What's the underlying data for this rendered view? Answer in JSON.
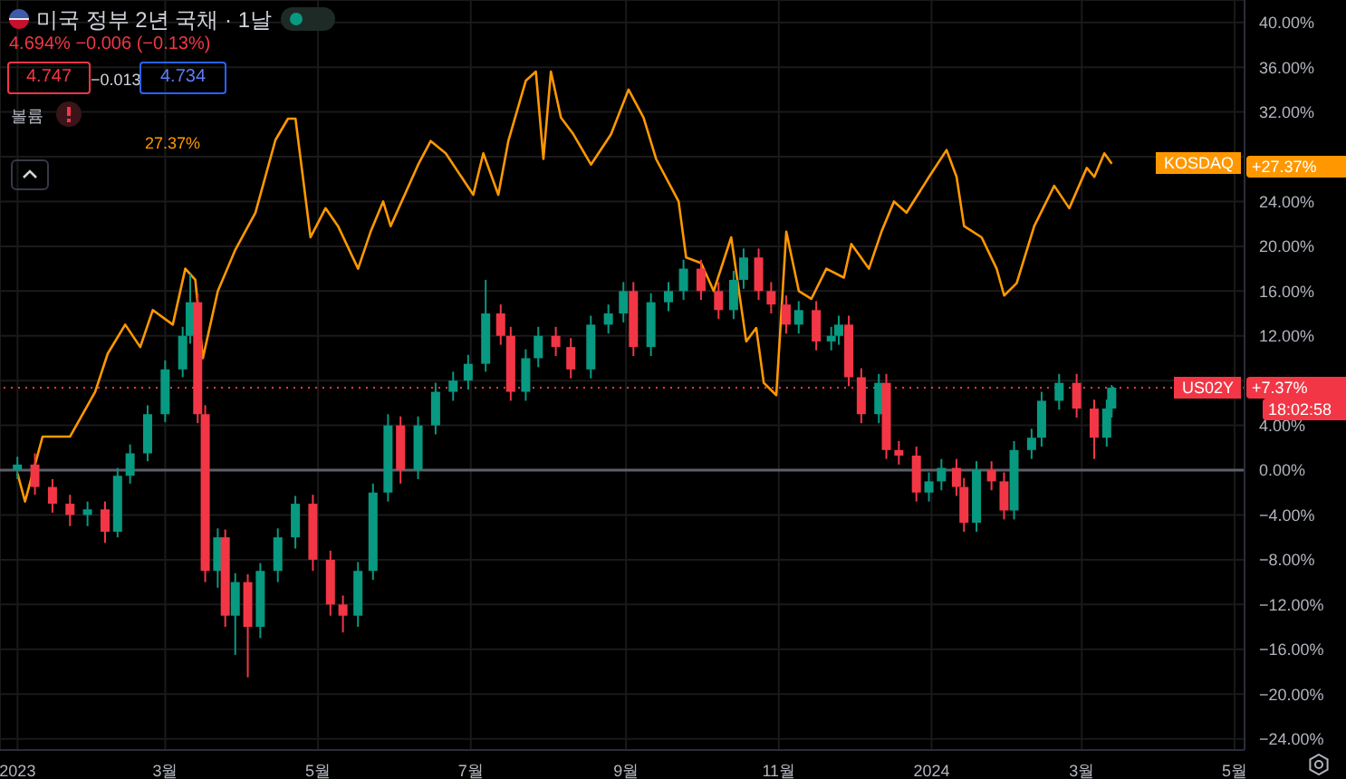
{
  "chart_data": {
    "type": "candlestick",
    "title": "미국 정부 2년 국채 · 1날",
    "subtitle": "4.694% −0.006 (−0.13%)",
    "annotations": [
      "4.747",
      "−0.013",
      "4.734",
      "볼륨",
      "27.37%",
      "18:02:58",
      "+27.37%",
      "+7.37%"
    ],
    "series": [
      {
        "name": "US02Y",
        "x": [
          "2023-01-01",
          "2023-01-08",
          "2023-01-15",
          "2023-01-22",
          "2023-01-29",
          "2023-02-05",
          "2023-02-10",
          "2023-02-15",
          "2023-02-22",
          "2023-03-01",
          "2023-03-08",
          "2023-03-11",
          "2023-03-14",
          "2023-03-17",
          "2023-03-22",
          "2023-03-25",
          "2023-03-29",
          "2023-04-03",
          "2023-04-08",
          "2023-04-15",
          "2023-04-22",
          "2023-04-29",
          "2023-05-06",
          "2023-05-11",
          "2023-05-17",
          "2023-05-23",
          "2023-05-29",
          "2023-06-03",
          "2023-06-10",
          "2023-06-17",
          "2023-06-24",
          "2023-06-30",
          "2023-07-07",
          "2023-07-13",
          "2023-07-17",
          "2023-07-23",
          "2023-07-28",
          "2023-08-04",
          "2023-08-10",
          "2023-08-18",
          "2023-08-25",
          "2023-08-31",
          "2023-09-04",
          "2023-09-11",
          "2023-09-18",
          "2023-09-24",
          "2023-10-01",
          "2023-10-08",
          "2023-10-14",
          "2023-10-18",
          "2023-10-24",
          "2023-10-29",
          "2023-11-04",
          "2023-11-09",
          "2023-11-16",
          "2023-11-22",
          "2023-11-25",
          "2023-11-29",
          "2023-12-04",
          "2023-12-11",
          "2023-12-14",
          "2023-12-19",
          "2023-12-26",
          "2023-12-31",
          "2024-01-05",
          "2024-01-11",
          "2024-01-14",
          "2024-01-19",
          "2024-01-25",
          "2024-01-30",
          "2024-02-03",
          "2024-02-10",
          "2024-02-14",
          "2024-02-21",
          "2024-02-28",
          "2024-03-06",
          "2024-03-11",
          "2024-03-13"
        ],
        "ohlc": [
          [
            0,
            1.2,
            -0.8,
            0.5
          ],
          [
            0.5,
            1.5,
            -2.2,
            -1.5
          ],
          [
            -1.5,
            -0.8,
            -3.8,
            -3
          ],
          [
            -3,
            -2.2,
            -5,
            -4
          ],
          [
            -4,
            -2.8,
            -5,
            -3.5
          ],
          [
            -3.5,
            -2.8,
            -6.5,
            -5.5
          ],
          [
            -5.5,
            0.2,
            -6,
            -0.5
          ],
          [
            -0.5,
            2.3,
            -1.2,
            1.5
          ],
          [
            1.5,
            5.8,
            0.8,
            5
          ],
          [
            5,
            9.8,
            4.3,
            9
          ],
          [
            9,
            12.8,
            8.3,
            12
          ],
          [
            12,
            17.5,
            11.3,
            15
          ],
          [
            15,
            15.8,
            4.2,
            5
          ],
          [
            5,
            5.8,
            -10,
            -9
          ],
          [
            -9,
            -5.2,
            -10.5,
            -6
          ],
          [
            -6,
            -5.3,
            -14,
            -13
          ],
          [
            -13,
            -9.2,
            -16.5,
            -10
          ],
          [
            -10,
            -9.3,
            -18.5,
            -14
          ],
          [
            -14,
            -8.3,
            -15,
            -9
          ],
          [
            -9,
            -5.2,
            -10,
            -6
          ],
          [
            -6,
            -2.3,
            -7,
            -3
          ],
          [
            -3,
            -2.2,
            -9,
            -8
          ],
          [
            -8,
            -7.2,
            -13,
            -12
          ],
          [
            -12,
            -11.2,
            -14.5,
            -13
          ],
          [
            -13,
            -8.2,
            -14,
            -9
          ],
          [
            -9,
            -1.2,
            -9.8,
            -2
          ],
          [
            -2,
            5,
            -2.8,
            4
          ],
          [
            4,
            4.8,
            -1.2,
            0
          ],
          [
            0,
            4.8,
            -0.8,
            4
          ],
          [
            4,
            7.8,
            3.2,
            7
          ],
          [
            7,
            8.8,
            6.2,
            8
          ],
          [
            8,
            10.3,
            7.2,
            9.5
          ],
          [
            9.5,
            17,
            8.8,
            14
          ],
          [
            14,
            14.8,
            11.2,
            12
          ],
          [
            12,
            12.8,
            6.2,
            7
          ],
          [
            7,
            10.8,
            6.2,
            10
          ],
          [
            10,
            12.8,
            9.2,
            12
          ],
          [
            12,
            12.8,
            10.2,
            11
          ],
          [
            11,
            11.8,
            8.2,
            9
          ],
          [
            9,
            13.8,
            8.2,
            13
          ],
          [
            13,
            14.8,
            12.2,
            14
          ],
          [
            14,
            16.8,
            13.2,
            16
          ],
          [
            16,
            16.8,
            10.2,
            11
          ],
          [
            11,
            15.8,
            10.2,
            15
          ],
          [
            15,
            16.8,
            14.2,
            16
          ],
          [
            16,
            18.8,
            15.2,
            18
          ],
          [
            18,
            18.8,
            15.2,
            16
          ],
          [
            16,
            16.8,
            13.5,
            14.3
          ],
          [
            14.3,
            17.8,
            13.5,
            17
          ],
          [
            17,
            19.8,
            16.2,
            19
          ],
          [
            19,
            19.8,
            15.2,
            16
          ],
          [
            16,
            16.8,
            14,
            14.8
          ],
          [
            14.8,
            15.6,
            12.2,
            13
          ],
          [
            13,
            15.1,
            12.2,
            14.3
          ],
          [
            14.3,
            15.1,
            10.7,
            11.5
          ],
          [
            11.5,
            12.8,
            10.7,
            12
          ],
          [
            12,
            13.8,
            11.2,
            13
          ],
          [
            13,
            13.8,
            7.5,
            8.3
          ],
          [
            8.3,
            9.1,
            4.2,
            5
          ],
          [
            5,
            8.6,
            4.2,
            7.8
          ],
          [
            7.8,
            8.6,
            1,
            1.8
          ],
          [
            1.8,
            2.6,
            0.5,
            1.3
          ],
          [
            1.3,
            2.1,
            -2.8,
            -2
          ],
          [
            -2,
            -0.2,
            -2.8,
            -1
          ],
          [
            -1,
            1,
            -1.8,
            0.2
          ],
          [
            0.2,
            1,
            -2.3,
            -1.5
          ],
          [
            -1.5,
            -0.7,
            -5.5,
            -4.7
          ],
          [
            -4.7,
            0.8,
            -5.5,
            0
          ],
          [
            0,
            0.8,
            -1.8,
            -1
          ],
          [
            -1,
            -0.2,
            -4.4,
            -3.6
          ],
          [
            -3.6,
            2.6,
            -4.4,
            1.8
          ],
          [
            1.8,
            3.7,
            1,
            2.9
          ],
          [
            2.9,
            7,
            2.1,
            6.2
          ],
          [
            6.2,
            8.6,
            5.4,
            7.8
          ],
          [
            7.8,
            8.6,
            4.7,
            5.5
          ],
          [
            5.5,
            6.3,
            1,
            2.9
          ],
          [
            2.9,
            6.3,
            2.1,
            5.5
          ],
          [
            5.5,
            7.6,
            4.7,
            7.37
          ]
        ],
        "colors": [
          "#089981",
          "#f23645",
          "#f23645",
          "#f23645",
          "#089981",
          "#f23645",
          "#089981",
          "#089981",
          "#089981",
          "#089981",
          "#089981",
          "#089981",
          "#f23645",
          "#f23645",
          "#089981",
          "#f23645",
          "#089981",
          "#f23645",
          "#089981",
          "#089981",
          "#089981",
          "#f23645",
          "#f23645",
          "#f23645",
          "#089981",
          "#089981",
          "#089981",
          "#f23645",
          "#089981",
          "#089981",
          "#089981",
          "#089981",
          "#089981",
          "#f23645",
          "#f23645",
          "#089981",
          "#089981",
          "#f23645",
          "#f23645",
          "#089981",
          "#089981",
          "#089981",
          "#f23645",
          "#089981",
          "#089981",
          "#089981",
          "#f23645",
          "#f23645",
          "#089981",
          "#089981",
          "#f23645",
          "#f23645",
          "#f23645",
          "#089981",
          "#f23645",
          "#089981",
          "#089981",
          "#f23645",
          "#f23645",
          "#089981",
          "#f23645",
          "#f23645",
          "#f23645",
          "#089981",
          "#089981",
          "#f23645",
          "#f23645",
          "#089981",
          "#f23645",
          "#f23645",
          "#089981",
          "#089981",
          "#089981",
          "#089981",
          "#f23645",
          "#f23645",
          "#089981",
          "#089981"
        ],
        "color": "#f23645"
      },
      {
        "name": "KOSDAQ",
        "type": "line",
        "color": "#ff9800",
        "x": [
          "2023-01-01",
          "2023-01-04",
          "2023-01-11",
          "2023-01-22",
          "2023-02-01",
          "2023-02-06",
          "2023-02-13",
          "2023-02-19",
          "2023-02-24",
          "2023-03-04",
          "2023-03-09",
          "2023-03-13",
          "2023-03-16",
          "2023-03-22",
          "2023-03-29",
          "2023-04-06",
          "2023-04-14",
          "2023-04-19",
          "2023-04-22",
          "2023-04-28",
          "2023-05-04",
          "2023-05-09",
          "2023-05-17",
          "2023-05-22",
          "2023-05-27",
          "2023-05-30",
          "2023-06-10",
          "2023-06-15",
          "2023-06-21",
          "2023-07-02",
          "2023-07-06",
          "2023-07-12",
          "2023-07-16",
          "2023-07-23",
          "2023-07-27",
          "2023-07-30",
          "2023-08-02",
          "2023-08-06",
          "2023-08-11",
          "2023-08-18",
          "2023-08-26",
          "2023-09-02",
          "2023-09-08",
          "2023-09-13",
          "2023-09-22",
          "2023-09-25",
          "2023-10-01",
          "2023-10-06",
          "2023-10-13",
          "2023-10-19",
          "2023-10-23",
          "2023-10-26",
          "2023-10-31",
          "2023-11-04",
          "2023-11-09",
          "2023-11-14",
          "2023-11-20",
          "2023-11-27",
          "2023-11-30",
          "2023-12-07",
          "2023-12-12",
          "2023-12-17",
          "2023-12-22",
          "2023-12-31",
          "2024-01-07",
          "2024-01-11",
          "2024-01-14",
          "2024-01-21",
          "2024-01-27",
          "2024-01-30",
          "2024-02-04",
          "2024-02-11",
          "2024-02-19",
          "2024-02-25",
          "2024-03-03",
          "2024-03-06",
          "2024-03-10",
          "2024-03-13"
        ],
        "values": [
          -0.3,
          -2.8,
          3,
          3,
          7,
          10.4,
          13,
          11,
          14.3,
          13,
          18,
          17,
          10,
          16,
          19.7,
          23,
          29.5,
          31.4,
          31.4,
          20.8,
          23.4,
          21.8,
          18,
          21.3,
          24,
          21.8,
          27.3,
          29.4,
          28.3,
          24.6,
          28.3,
          24.6,
          29.4,
          34.8,
          35.6,
          27.8,
          35.6,
          31.5,
          30,
          27.3,
          30,
          34,
          31.5,
          27.8,
          24,
          19,
          18.5,
          16,
          20.8,
          11.5,
          12.7,
          7.8,
          6.7,
          21.3,
          16,
          15.3,
          18,
          17.2,
          20.2,
          18,
          21.3,
          24,
          23,
          26.2,
          28.6,
          26.2,
          21.8,
          20.8,
          18,
          15.6,
          16.7,
          21.8,
          25.4,
          23.4,
          27,
          26.2,
          28.3,
          27.37
        ]
      }
    ],
    "xlim": [
      "2022-12-25",
      "2024-05-05"
    ],
    "xticks": [
      {
        "value": "2023-01-01",
        "label": "2023"
      },
      {
        "value": "2023-03-01",
        "label": "3월"
      },
      {
        "value": "2023-05-01",
        "label": "5월"
      },
      {
        "value": "2023-07-01",
        "label": "7월"
      },
      {
        "value": "2023-09-01",
        "label": "9월"
      },
      {
        "value": "2023-11-01",
        "label": "11월"
      },
      {
        "value": "2024-01-01",
        "label": "2024"
      },
      {
        "value": "2024-03-01",
        "label": "3월"
      },
      {
        "value": "2024-05-01",
        "label": "5월"
      }
    ],
    "ylim": [
      -25,
      42
    ],
    "yticks": [
      {
        "value": 40,
        "label": "40.00%"
      },
      {
        "value": 36,
        "label": "36.00%"
      },
      {
        "value": 32,
        "label": "32.00%"
      },
      {
        "value": 28,
        "label": null
      },
      {
        "value": 24,
        "label": "24.00%"
      },
      {
        "value": 20,
        "label": "20.00%"
      },
      {
        "value": 16,
        "label": "16.00%"
      },
      {
        "value": 12,
        "label": "12.00%"
      },
      {
        "value": 8,
        "label": null
      },
      {
        "value": 4,
        "label": "4.00%"
      },
      {
        "value": 0,
        "label": "0.00%"
      },
      {
        "value": -4,
        "label": "−4.00%"
      },
      {
        "value": -8,
        "label": "−8.00%"
      },
      {
        "value": -12,
        "label": "−12.00%"
      },
      {
        "value": -16,
        "label": "−16.00%"
      },
      {
        "value": -20,
        "label": "−20.00%"
      },
      {
        "value": -24,
        "label": "−24.00%"
      }
    ],
    "ref_lines": [
      {
        "axis": "y",
        "value": 0,
        "color": "#5d606b",
        "line_style": "solid"
      },
      {
        "axis": "y",
        "value": 7.37,
        "color": "#f23645",
        "line_style": "dotted"
      }
    ],
    "grid": true
  }
}
